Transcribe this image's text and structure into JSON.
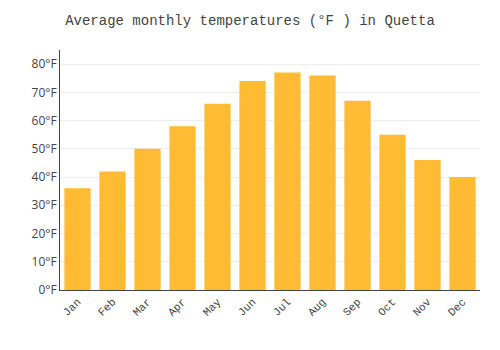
{
  "chart_data": {
    "type": "bar",
    "title": "Average monthly temperatures (°F ) in Quetta",
    "categories": [
      "Jan",
      "Feb",
      "Mar",
      "Apr",
      "May",
      "Jun",
      "Jul",
      "Aug",
      "Sep",
      "Oct",
      "Nov",
      "Dec"
    ],
    "values": [
      36,
      42,
      50,
      58,
      66,
      74,
      77,
      76,
      67,
      55,
      46,
      40
    ],
    "color": "#FFBB33",
    "ylim": [
      0,
      85
    ],
    "yticks": [
      {
        "value": 0,
        "label": "0°F"
      },
      {
        "value": 10,
        "label": "10°F"
      },
      {
        "value": 20,
        "label": "20°F"
      },
      {
        "value": 30,
        "label": "30°F"
      },
      {
        "value": 40,
        "label": "40°F"
      },
      {
        "value": 50,
        "label": "50°F"
      },
      {
        "value": 60,
        "label": "60°F"
      },
      {
        "value": 70,
        "label": "70°F"
      },
      {
        "value": 80,
        "label": "80°F"
      }
    ],
    "grid": true
  }
}
